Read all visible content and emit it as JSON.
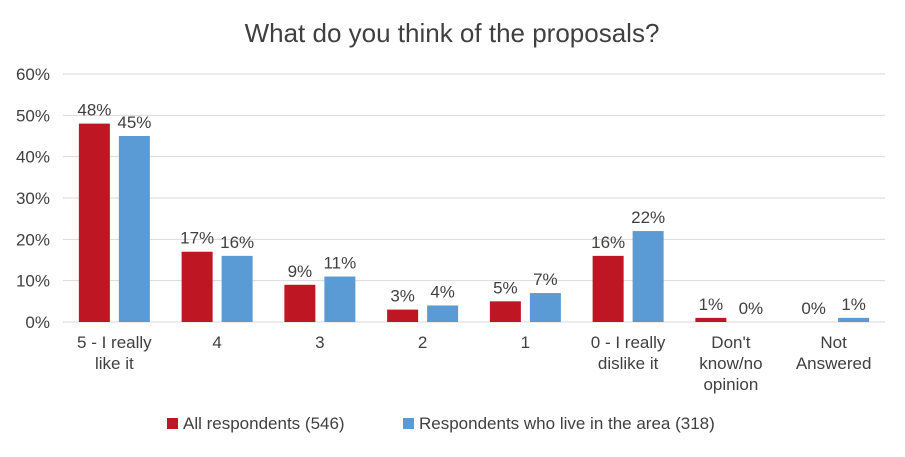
{
  "chart_data": {
    "type": "bar",
    "title": "What do you think of the proposals?",
    "categories": [
      [
        "5 - I really",
        "like it"
      ],
      [
        "4"
      ],
      [
        "3"
      ],
      [
        "2"
      ],
      [
        "1"
      ],
      [
        "0 - I really",
        "dislike it"
      ],
      [
        "Don't",
        "know/no",
        "opinion"
      ],
      [
        "Not",
        "Answered"
      ]
    ],
    "series": [
      {
        "name": "All respondents (546)",
        "color": "#be1622",
        "values": [
          48,
          17,
          9,
          3,
          5,
          16,
          1,
          0
        ]
      },
      {
        "name": "Respondents who live in the area (318)",
        "color": "#5b9bd5",
        "values": [
          45,
          16,
          11,
          4,
          7,
          22,
          0,
          1
        ]
      }
    ],
    "ylim": [
      0,
      60
    ],
    "yticks": [
      0,
      10,
      20,
      30,
      40,
      50,
      60
    ],
    "ytick_suffix": "%",
    "value_suffix": "%",
    "grid": true,
    "legend_position": "bottom"
  }
}
